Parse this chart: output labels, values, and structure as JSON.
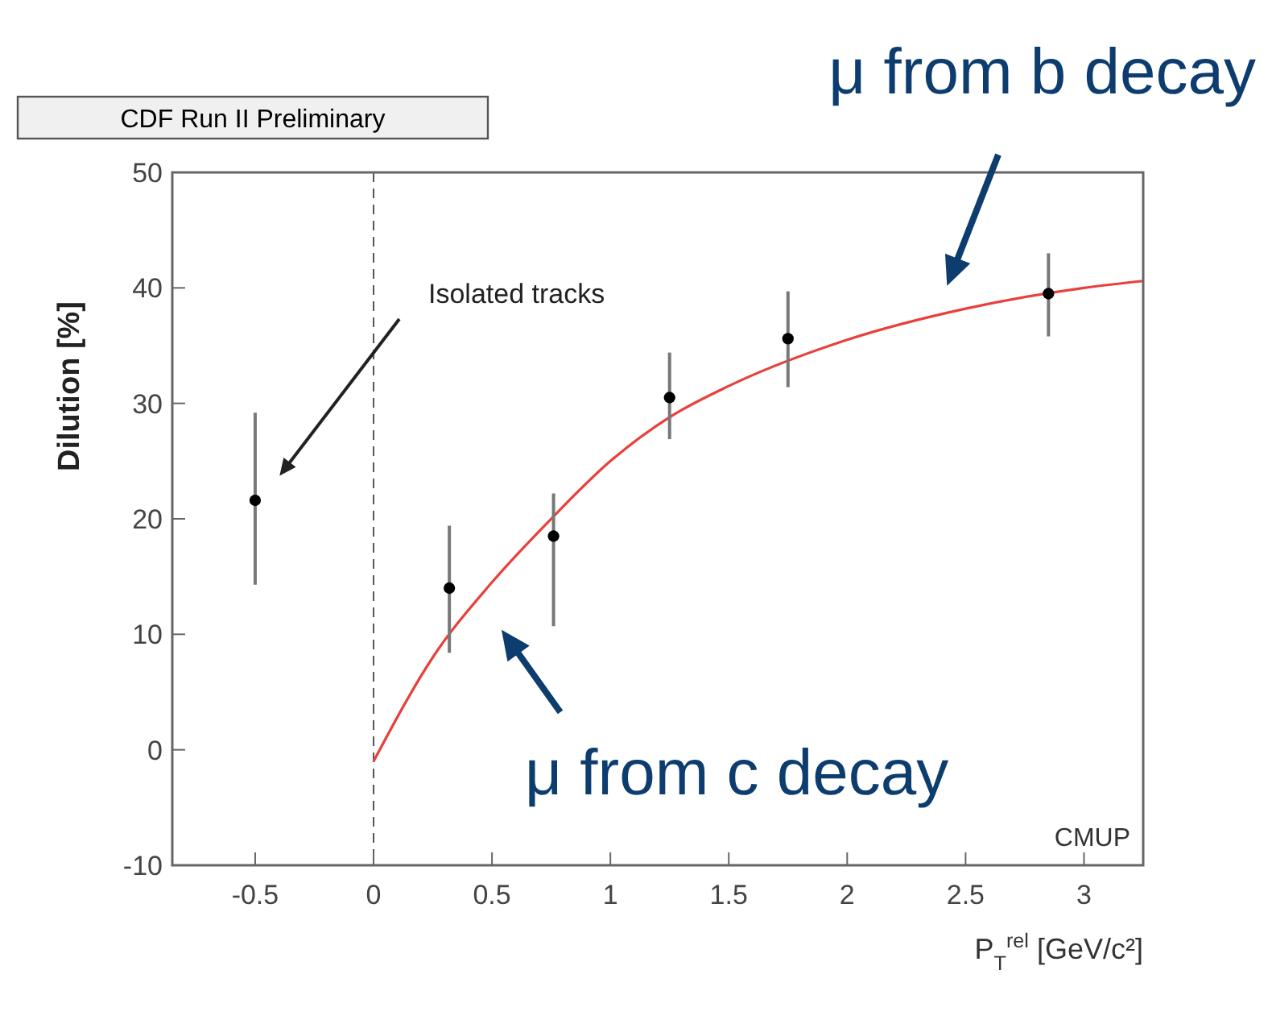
{
  "chart_data": {
    "type": "scatter",
    "xlabel": "P$_{T}$$^{rel}$ [GeV/c²]",
    "ylabel": "Dilution [%]",
    "xlim": [
      -0.85,
      3.25
    ],
    "xticks": [
      -0.5,
      0,
      0.5,
      1,
      1.5,
      2,
      2.5,
      3
    ],
    "ylim": [
      -10,
      50
    ],
    "yticks": [
      -10,
      0,
      10,
      20,
      30,
      40,
      50
    ],
    "grid": false,
    "series": [
      {
        "marker": "circle",
        "color": "#000000",
        "x": [
          -0.5,
          0.32,
          0.76,
          1.25,
          1.75,
          2.85
        ],
        "values": [
          21.6,
          14,
          18.5,
          30.5,
          35.6,
          39.5
        ],
        "errors": [
          [
            14.3,
            29.2
          ],
          [
            8.4,
            19.4
          ],
          [
            10.7,
            22.2
          ],
          [
            26.9,
            34.4
          ],
          [
            31.4,
            39.7
          ],
          [
            35.8,
            43
          ]
        ]
      },
      {
        "type": "line",
        "color": "#e8413c",
        "line_style": "solid",
        "x": [
          0,
          0.25,
          0.5,
          0.75,
          1,
          1.25,
          1.5,
          2,
          2.5,
          3,
          3.25
        ],
        "values": [
          -1,
          8,
          14.5,
          20,
          25,
          28.8,
          31.5,
          35.5,
          38.2,
          40,
          40.6
        ]
      }
    ],
    "ref_lines": [
      {
        "axis": "x",
        "value": 0,
        "line_style": "dashed",
        "color": "#555555"
      }
    ],
    "annotations": [
      "CDF Run II Preliminary",
      "Isolated tracks",
      "μ from b decay",
      "μ from c decay",
      "CMUP"
    ]
  }
}
